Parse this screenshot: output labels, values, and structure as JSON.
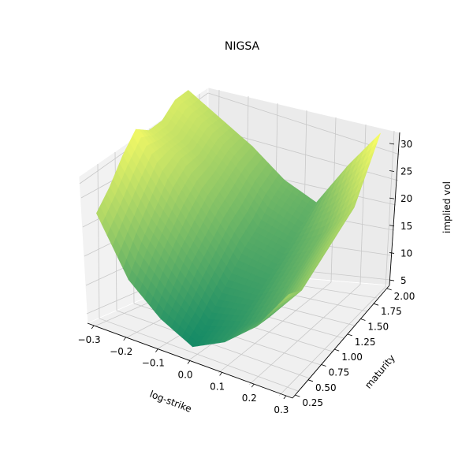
{
  "chart_data": {
    "type": "surface",
    "title": "NIGSA",
    "xlabel": "log-strike",
    "ylabel": "maturity",
    "zlabel": "implied vol",
    "x_ticks": [
      "−0.3",
      "−0.2",
      "−0.1",
      "0.0",
      "0.1",
      "0.2",
      "0.3"
    ],
    "y_ticks": [
      "0.25",
      "0.50",
      "0.75",
      "1.00",
      "1.25",
      "1.50",
      "1.75",
      "2.00"
    ],
    "z_ticks": [
      "5",
      "10",
      "15",
      "20",
      "25",
      "30"
    ],
    "xlim": [
      -0.32,
      0.32
    ],
    "ylim": [
      0.2,
      2.05
    ],
    "zlim": [
      4,
      32
    ],
    "grid": true,
    "colormap": "summer",
    "colormap_colors": [
      "#008066",
      "#ffff66"
    ],
    "log_strike": [
      -0.3,
      -0.2,
      -0.1,
      0.0,
      0.1,
      0.2,
      0.3
    ],
    "maturity": [
      0.25,
      0.5,
      0.75,
      1.0,
      1.25,
      1.5,
      1.75,
      2.0
    ],
    "implied_vol": [
      [
        24,
        26,
        29,
        31,
        28,
        27,
        28,
        27
      ],
      [
        14,
        18,
        21,
        24,
        25,
        24,
        25,
        24
      ],
      [
        9,
        12,
        15,
        17,
        19,
        20,
        21,
        21
      ],
      [
        6,
        7,
        9,
        11,
        13,
        14,
        16,
        17
      ],
      [
        9,
        9,
        10,
        11,
        12,
        13,
        14,
        15
      ],
      [
        14,
        13,
        14,
        15,
        16,
        17,
        20,
        24
      ],
      [
        22,
        20,
        21,
        22,
        23,
        24,
        28,
        32
      ]
    ]
  }
}
